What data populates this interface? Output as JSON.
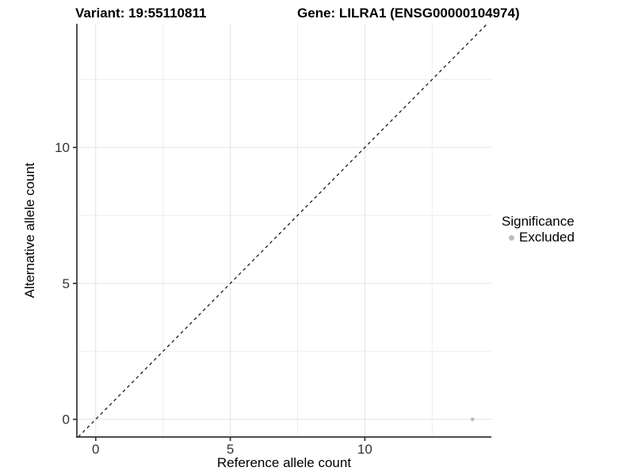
{
  "chart_data": {
    "type": "scatter",
    "title_left": "Variant: 19:55110811",
    "title_right": "Gene: LILRA1 (ENSG00000104974)",
    "xlabel": "Reference allele count",
    "ylabel": "Alternative allele count",
    "xlim": [
      -0.7,
      14.7
    ],
    "ylim": [
      -0.65,
      14.55
    ],
    "major_ticks": [
      0,
      5,
      10
    ],
    "minor_ticks": [
      2.5,
      7.5,
      12.5
    ],
    "grid": true,
    "identity_line": {
      "equation": "y = x",
      "style": "dashed",
      "color": "#1a1a1a"
    },
    "points": [
      {
        "x": 14,
        "y": 0,
        "significance": "Excluded"
      }
    ],
    "legend": {
      "title": "Significance",
      "position": "right",
      "items": [
        {
          "label": "Excluded",
          "color": "#bdbdbd"
        }
      ]
    },
    "colors": {
      "background": "#ffffff",
      "axis_line": "#333333",
      "tick_label": "#333333",
      "grid_major": "#e3e3e3",
      "grid_minor": "#ededed",
      "point": "#bdbdbd"
    }
  }
}
